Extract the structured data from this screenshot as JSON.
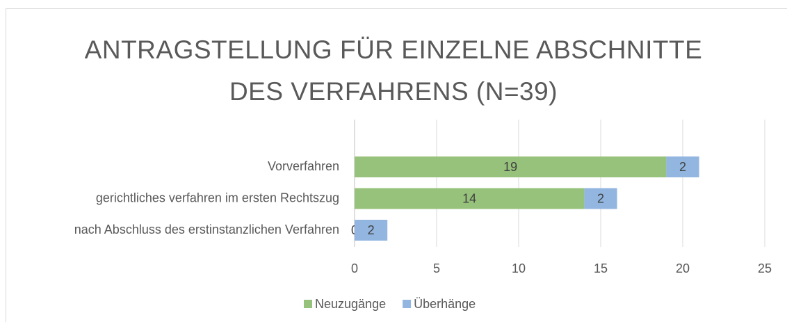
{
  "chart_data": {
    "type": "stacked_barh",
    "title": "ANTRAGSTELLUNG FÜR EINZELNE ABSCHNITTE DES VERFAHRENS (N=39)",
    "categories": [
      "Vorverfahren",
      "gerichtliches verfahren im ersten Rechtszug",
      "nach Abschluss des erstinstanzlichen Verfahren"
    ],
    "series": [
      {
        "name": "Neuzugänge",
        "color": "#97c27b",
        "values": [
          19,
          14,
          0
        ]
      },
      {
        "name": "Überhänge",
        "color": "#92b6e0",
        "values": [
          2,
          2,
          2
        ]
      }
    ],
    "xlim": [
      0,
      25
    ],
    "xticks": [
      0,
      5,
      10,
      15,
      20,
      25
    ],
    "grid": true,
    "legend": "bottom"
  }
}
